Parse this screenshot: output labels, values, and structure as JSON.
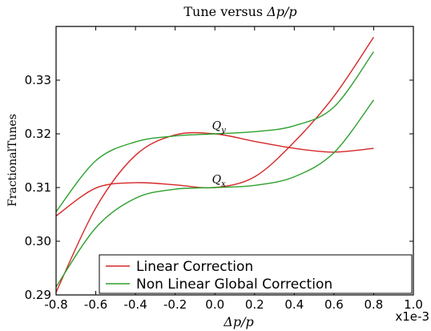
{
  "chart_data": {
    "type": "line",
    "title": "Tune versus Δp/p",
    "title_plain": "Tune versus ",
    "title_math": "Δp/p",
    "xlabel": "Δp/p",
    "ylabel": "FractionalTunes",
    "x_multiplier": "x1e-3",
    "xlim": [
      -0.8,
      1.0
    ],
    "ylim": [
      0.29,
      0.34
    ],
    "x_ticks": [
      "-0.8",
      "-0.6",
      "-0.4",
      "-0.2",
      "0.0",
      "0.2",
      "0.4",
      "0.6",
      "0.8",
      "1.0"
    ],
    "y_ticks": [
      "0.29",
      "0.30",
      "0.31",
      "0.32",
      "0.33"
    ],
    "grid": false,
    "legend_position": "bottom",
    "colors": {
      "linear": "#d62728",
      "nonlinear": "#2ca02c"
    },
    "annotations": [
      {
        "text": "Q",
        "sub": "y",
        "x": 0.02,
        "y": 0.3205
      },
      {
        "text": "Q",
        "sub": "x",
        "x": 0.02,
        "y": 0.3105
      }
    ],
    "series": [
      {
        "name": "Linear Correction",
        "color": "#d62728",
        "x": [
          -0.8,
          -0.6,
          -0.4,
          -0.2,
          0.0,
          0.2,
          0.4,
          0.6,
          0.8
        ],
        "y": [
          0.2905,
          0.3062,
          0.316,
          0.3198,
          0.32,
          0.3186,
          0.3173,
          0.3166,
          0.3173
        ]
      },
      {
        "name": "Linear Correction",
        "color": "#d62728",
        "x": [
          -0.8,
          -0.6,
          -0.4,
          -0.2,
          0.0,
          0.2,
          0.4,
          0.6,
          0.8
        ],
        "y": [
          0.3047,
          0.3099,
          0.3109,
          0.3105,
          0.31,
          0.312,
          0.3185,
          0.327,
          0.338
        ]
      },
      {
        "name": "Non Linear Global Correction",
        "color": "#2ca02c",
        "x": [
          -0.8,
          -0.6,
          -0.4,
          -0.2,
          0.0,
          0.2,
          0.4,
          0.6,
          0.8
        ],
        "y": [
          0.3055,
          0.315,
          0.3185,
          0.3196,
          0.32,
          0.3204,
          0.3215,
          0.325,
          0.3353
        ]
      },
      {
        "name": "Non Linear Global Correction",
        "color": "#2ca02c",
        "x": [
          -0.8,
          -0.6,
          -0.4,
          -0.2,
          0.0,
          0.2,
          0.4,
          0.6,
          0.8
        ],
        "y": [
          0.2915,
          0.3025,
          0.308,
          0.3097,
          0.31,
          0.3104,
          0.312,
          0.3165,
          0.3263
        ]
      }
    ],
    "legend": [
      {
        "label": "Linear Correction",
        "color": "#d62728"
      },
      {
        "label": "Non Linear Global Correction",
        "color": "#2ca02c"
      }
    ]
  }
}
